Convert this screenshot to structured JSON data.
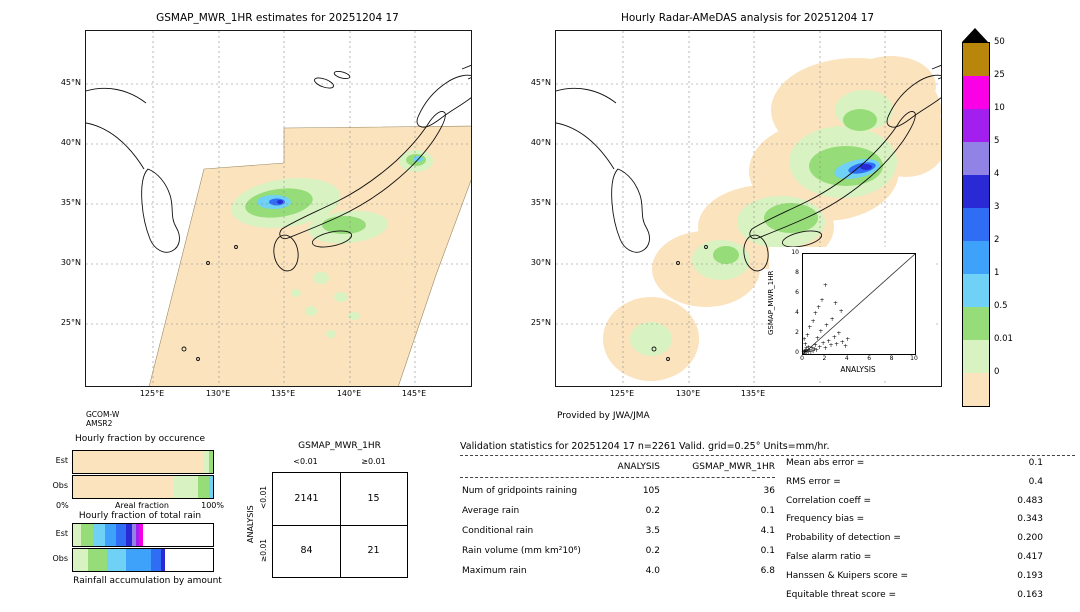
{
  "left_map": {
    "title": "GSMAP_MWR_1HR estimates for 20251204 17",
    "lat_labels": [
      "45°N",
      "40°N",
      "35°N",
      "30°N",
      "25°N"
    ],
    "lon_labels": [
      "125°E",
      "130°E",
      "135°E",
      "140°E",
      "145°E"
    ],
    "source_lines": [
      "GCOM-W",
      "AMSR2"
    ]
  },
  "right_map": {
    "title": "Hourly Radar-AMeDAS analysis for 20251204 17",
    "lat_labels": [
      "45°N",
      "40°N",
      "35°N",
      "30°N",
      "25°N"
    ],
    "lon_labels": [
      "125°E",
      "130°E",
      "135°E"
    ],
    "credit": "Provided by JWA/JMA",
    "inset": {
      "xlabel": "ANALYSIS",
      "ylabel": "GSMAP_MWR_1HR",
      "x_ticks": [
        0,
        2,
        4,
        6,
        8,
        10
      ],
      "y_ticks": [
        0,
        2,
        4,
        6,
        8,
        10
      ]
    }
  },
  "colorbar": {
    "labels": [
      "50",
      "25",
      "10",
      "5",
      "4",
      "3",
      "2",
      "1",
      "0.5",
      "0.01",
      "0"
    ],
    "colors": [
      "#b8860b",
      "#fa00e6",
      "#a21fee",
      "#9183e6",
      "#2929d6",
      "#2f6df5",
      "#3fa2fa",
      "#6fd1f6",
      "#96dc78",
      "#d9f2c2",
      "#fbe3bd"
    ]
  },
  "fractions": {
    "occurrence": {
      "title": "Hourly fraction by occurence",
      "row_labels": [
        "Est",
        "Obs"
      ],
      "x_min_label": "0%",
      "x_max_label": "100%",
      "x_axis_label": "Areal fraction",
      "est_segments": [
        {
          "color": "#fbe3bd",
          "pct": 93
        },
        {
          "color": "#d9f2c2",
          "pct": 4
        },
        {
          "color": "#96dc78",
          "pct": 3
        }
      ],
      "obs_segments": [
        {
          "color": "#fbe3bd",
          "pct": 72
        },
        {
          "color": "#d9f2c2",
          "pct": 17
        },
        {
          "color": "#96dc78",
          "pct": 8
        },
        {
          "color": "#6fd1f6",
          "pct": 3
        }
      ]
    },
    "total_rain": {
      "title": "Hourly fraction of total rain",
      "row_labels": [
        "Est",
        "Obs"
      ],
      "caption": "Rainfall accumulation by amount",
      "est_segments": [
        {
          "color": "#d9f2c2",
          "pct": 6
        },
        {
          "color": "#96dc78",
          "pct": 8
        },
        {
          "color": "#6fd1f6",
          "pct": 9
        },
        {
          "color": "#3fa2fa",
          "pct": 8
        },
        {
          "color": "#2f6df5",
          "pct": 7
        },
        {
          "color": "#2929d6",
          "pct": 4
        },
        {
          "color": "#9183e6",
          "pct": 3
        },
        {
          "color": "#a21fee",
          "pct": 2
        },
        {
          "color": "#fa00e6",
          "pct": 3
        }
      ],
      "obs_segments": [
        {
          "color": "#d9f2c2",
          "pct": 11
        },
        {
          "color": "#96dc78",
          "pct": 13
        },
        {
          "color": "#6fd1f6",
          "pct": 14
        },
        {
          "color": "#3fa2fa",
          "pct": 18
        },
        {
          "color": "#2f6df5",
          "pct": 7
        },
        {
          "color": "#2929d6",
          "pct": 3
        }
      ]
    }
  },
  "contingency": {
    "title": "GSMAP_MWR_1HR",
    "side_label": "ANALYSIS",
    "col_headers": [
      "<0.01",
      "≥0.01"
    ],
    "row_headers": [
      "<0.01",
      "≥0.01"
    ],
    "cells": [
      [
        "2141",
        "15"
      ],
      [
        "84",
        "21"
      ]
    ]
  },
  "stats": {
    "header": "Validation statistics for 20251204 17  n=2261 Valid. grid=0.25° Units=mm/hr.",
    "col_headers": [
      "ANALYSIS",
      "GSMAP_MWR_1HR"
    ],
    "rows": [
      {
        "label": "Num of gridpoints raining",
        "analysis": "105",
        "gsmap": "36"
      },
      {
        "label": "Average rain",
        "analysis": "0.2",
        "gsmap": "0.1"
      },
      {
        "label": "Conditional rain",
        "analysis": "3.5",
        "gsmap": "4.1"
      },
      {
        "label": "Rain volume (mm km²10⁶)",
        "analysis": "0.2",
        "gsmap": "0.1"
      },
      {
        "label": "Maximum rain",
        "analysis": "4.0",
        "gsmap": "6.8"
      }
    ],
    "metrics": [
      {
        "label": "Mean abs error =",
        "value": "0.1"
      },
      {
        "label": "RMS error =",
        "value": "0.4"
      },
      {
        "label": "Correlation coeff =",
        "value": "0.483"
      },
      {
        "label": "Frequency bias =",
        "value": "0.343"
      },
      {
        "label": "Probability of detection =",
        "value": "0.200"
      },
      {
        "label": "False alarm ratio =",
        "value": "0.417"
      },
      {
        "label": "Hanssen & Kuipers score =",
        "value": "0.193"
      },
      {
        "label": "Equitable threat score =",
        "value": "0.163"
      }
    ]
  },
  "chart_data": [
    {
      "id": "gsmap_map",
      "type": "heatmap",
      "title": "GSMAP_MWR_1HR estimates for 20251204 17",
      "units": "mm/hr",
      "x_ticks": [
        "125°E",
        "130°E",
        "135°E",
        "140°E",
        "145°E"
      ],
      "y_ticks": [
        "45°N",
        "40°N",
        "35°N",
        "30°N",
        "25°N"
      ],
      "scale_values": [
        0,
        0.01,
        0.5,
        1,
        2,
        3,
        4,
        5,
        10,
        25,
        50
      ],
      "source": "GCOM-W AMSR2"
    },
    {
      "id": "radar_map",
      "type": "heatmap",
      "title": "Hourly Radar-AMeDAS analysis for 20251204 17",
      "units": "mm/hr",
      "x_ticks": [
        "125°E",
        "130°E",
        "135°E"
      ],
      "y_ticks": [
        "45°N",
        "40°N",
        "35°N",
        "30°N",
        "25°N"
      ],
      "scale_values": [
        0,
        0.01,
        0.5,
        1,
        2,
        3,
        4,
        5,
        10,
        25,
        50
      ],
      "credit": "Provided by JWA/JMA"
    },
    {
      "id": "inset_scatter",
      "type": "scatter",
      "xlabel": "ANALYSIS",
      "ylabel": "GSMAP_MWR_1HR",
      "xlim": [
        0,
        10
      ],
      "ylim": [
        0,
        10
      ],
      "points": [
        [
          0.05,
          0.05
        ],
        [
          0.1,
          0.2
        ],
        [
          0.15,
          0.05
        ],
        [
          0.2,
          0.1
        ],
        [
          0.25,
          0.3
        ],
        [
          0.3,
          0.05
        ],
        [
          0.3,
          0.5
        ],
        [
          0.4,
          0.2
        ],
        [
          0.4,
          1.8
        ],
        [
          0.5,
          0.1
        ],
        [
          0.5,
          0.6
        ],
        [
          0.6,
          0.3
        ],
        [
          0.6,
          2.6
        ],
        [
          0.7,
          0.1
        ],
        [
          0.8,
          0.5
        ],
        [
          0.9,
          0.2
        ],
        [
          0.9,
          3.2
        ],
        [
          1.0,
          0.4
        ],
        [
          1.1,
          0.8
        ],
        [
          1.1,
          4.0
        ],
        [
          1.2,
          0.3
        ],
        [
          1.3,
          1.5
        ],
        [
          1.4,
          4.6
        ],
        [
          1.5,
          0.6
        ],
        [
          1.6,
          2.2
        ],
        [
          1.7,
          5.3
        ],
        [
          1.8,
          1.0
        ],
        [
          2.0,
          0.5
        ],
        [
          2.0,
          6.8
        ],
        [
          2.1,
          2.8
        ],
        [
          2.3,
          1.2
        ],
        [
          2.5,
          0.8
        ],
        [
          2.6,
          3.4
        ],
        [
          2.8,
          1.6
        ],
        [
          2.9,
          5.0
        ],
        [
          3.0,
          0.9
        ],
        [
          3.2,
          2.0
        ],
        [
          3.4,
          4.2
        ],
        [
          3.5,
          1.1
        ],
        [
          3.8,
          0.7
        ],
        [
          4.0,
          1.4
        ],
        [
          0.2,
          0.9
        ],
        [
          0.1,
          1.4
        ]
      ]
    },
    {
      "id": "occurrence_bars",
      "type": "bar",
      "stacked": true,
      "title": "Hourly fraction by occurence",
      "categories": [
        "Est",
        "Obs"
      ],
      "xlabel": "Areal fraction",
      "xlim": [
        "0%",
        "100%"
      ],
      "series": [
        {
          "name": "Est",
          "values": [
            93,
            4,
            3
          ]
        },
        {
          "name": "Obs",
          "values": [
            72,
            17,
            8,
            3
          ]
        }
      ]
    },
    {
      "id": "total_rain_bars",
      "type": "bar",
      "stacked": true,
      "title": "Hourly fraction of total rain",
      "categories": [
        "Est",
        "Obs"
      ],
      "caption": "Rainfall accumulation by amount",
      "series": [
        {
          "name": "Est",
          "values": [
            6,
            8,
            9,
            8,
            7,
            4,
            3,
            2,
            3
          ]
        },
        {
          "name": "Obs",
          "values": [
            11,
            13,
            14,
            18,
            7,
            3
          ]
        }
      ]
    },
    {
      "id": "contingency_table",
      "type": "table",
      "title": "GSMAP_MWR_1HR vs ANALYSIS",
      "columns": [
        "<0.01",
        "≥0.01"
      ],
      "rows": [
        [
          "2141",
          "15"
        ],
        [
          "84",
          "21"
        ]
      ]
    },
    {
      "id": "validation_stats",
      "type": "table",
      "columns": [
        "",
        "ANALYSIS",
        "GSMAP_MWR_1HR"
      ],
      "rows": [
        [
          "Num of gridpoints raining",
          "105",
          "36"
        ],
        [
          "Average rain",
          "0.2",
          "0.1"
        ],
        [
          "Conditional rain",
          "3.5",
          "4.1"
        ],
        [
          "Rain volume (mm km²10⁶)",
          "0.2",
          "0.1"
        ],
        [
          "Maximum rain",
          "4.0",
          "6.8"
        ]
      ]
    }
  ]
}
